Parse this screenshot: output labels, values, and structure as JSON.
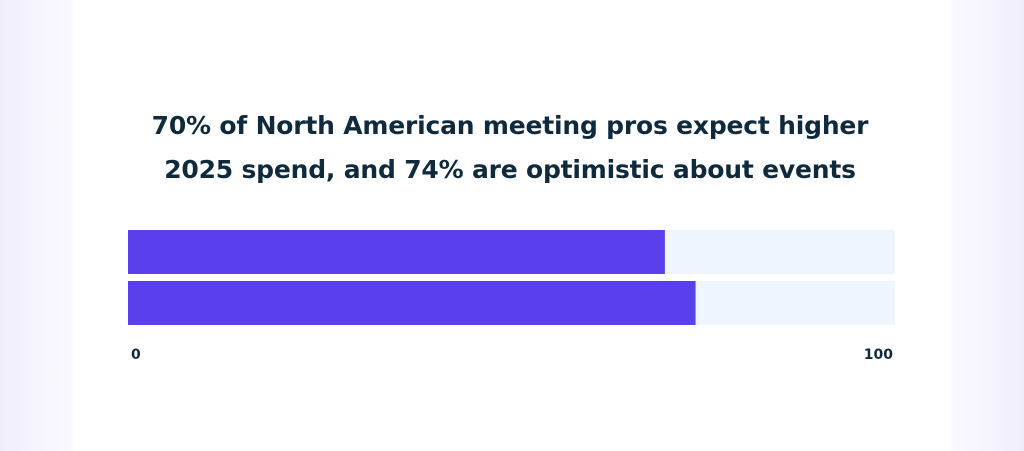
{
  "chart_data": {
    "type": "bar",
    "orientation": "horizontal",
    "title": "70% of North American meeting pros expect higher\n2025 spend, and 74% are optimistic about events",
    "categories": [
      null,
      null
    ],
    "values": [
      70,
      74
    ],
    "color": "#5a40ec",
    "track_color": "#eef5fd",
    "xlim": [
      0,
      100
    ],
    "xticks": [
      0,
      100
    ],
    "grid": false
  }
}
